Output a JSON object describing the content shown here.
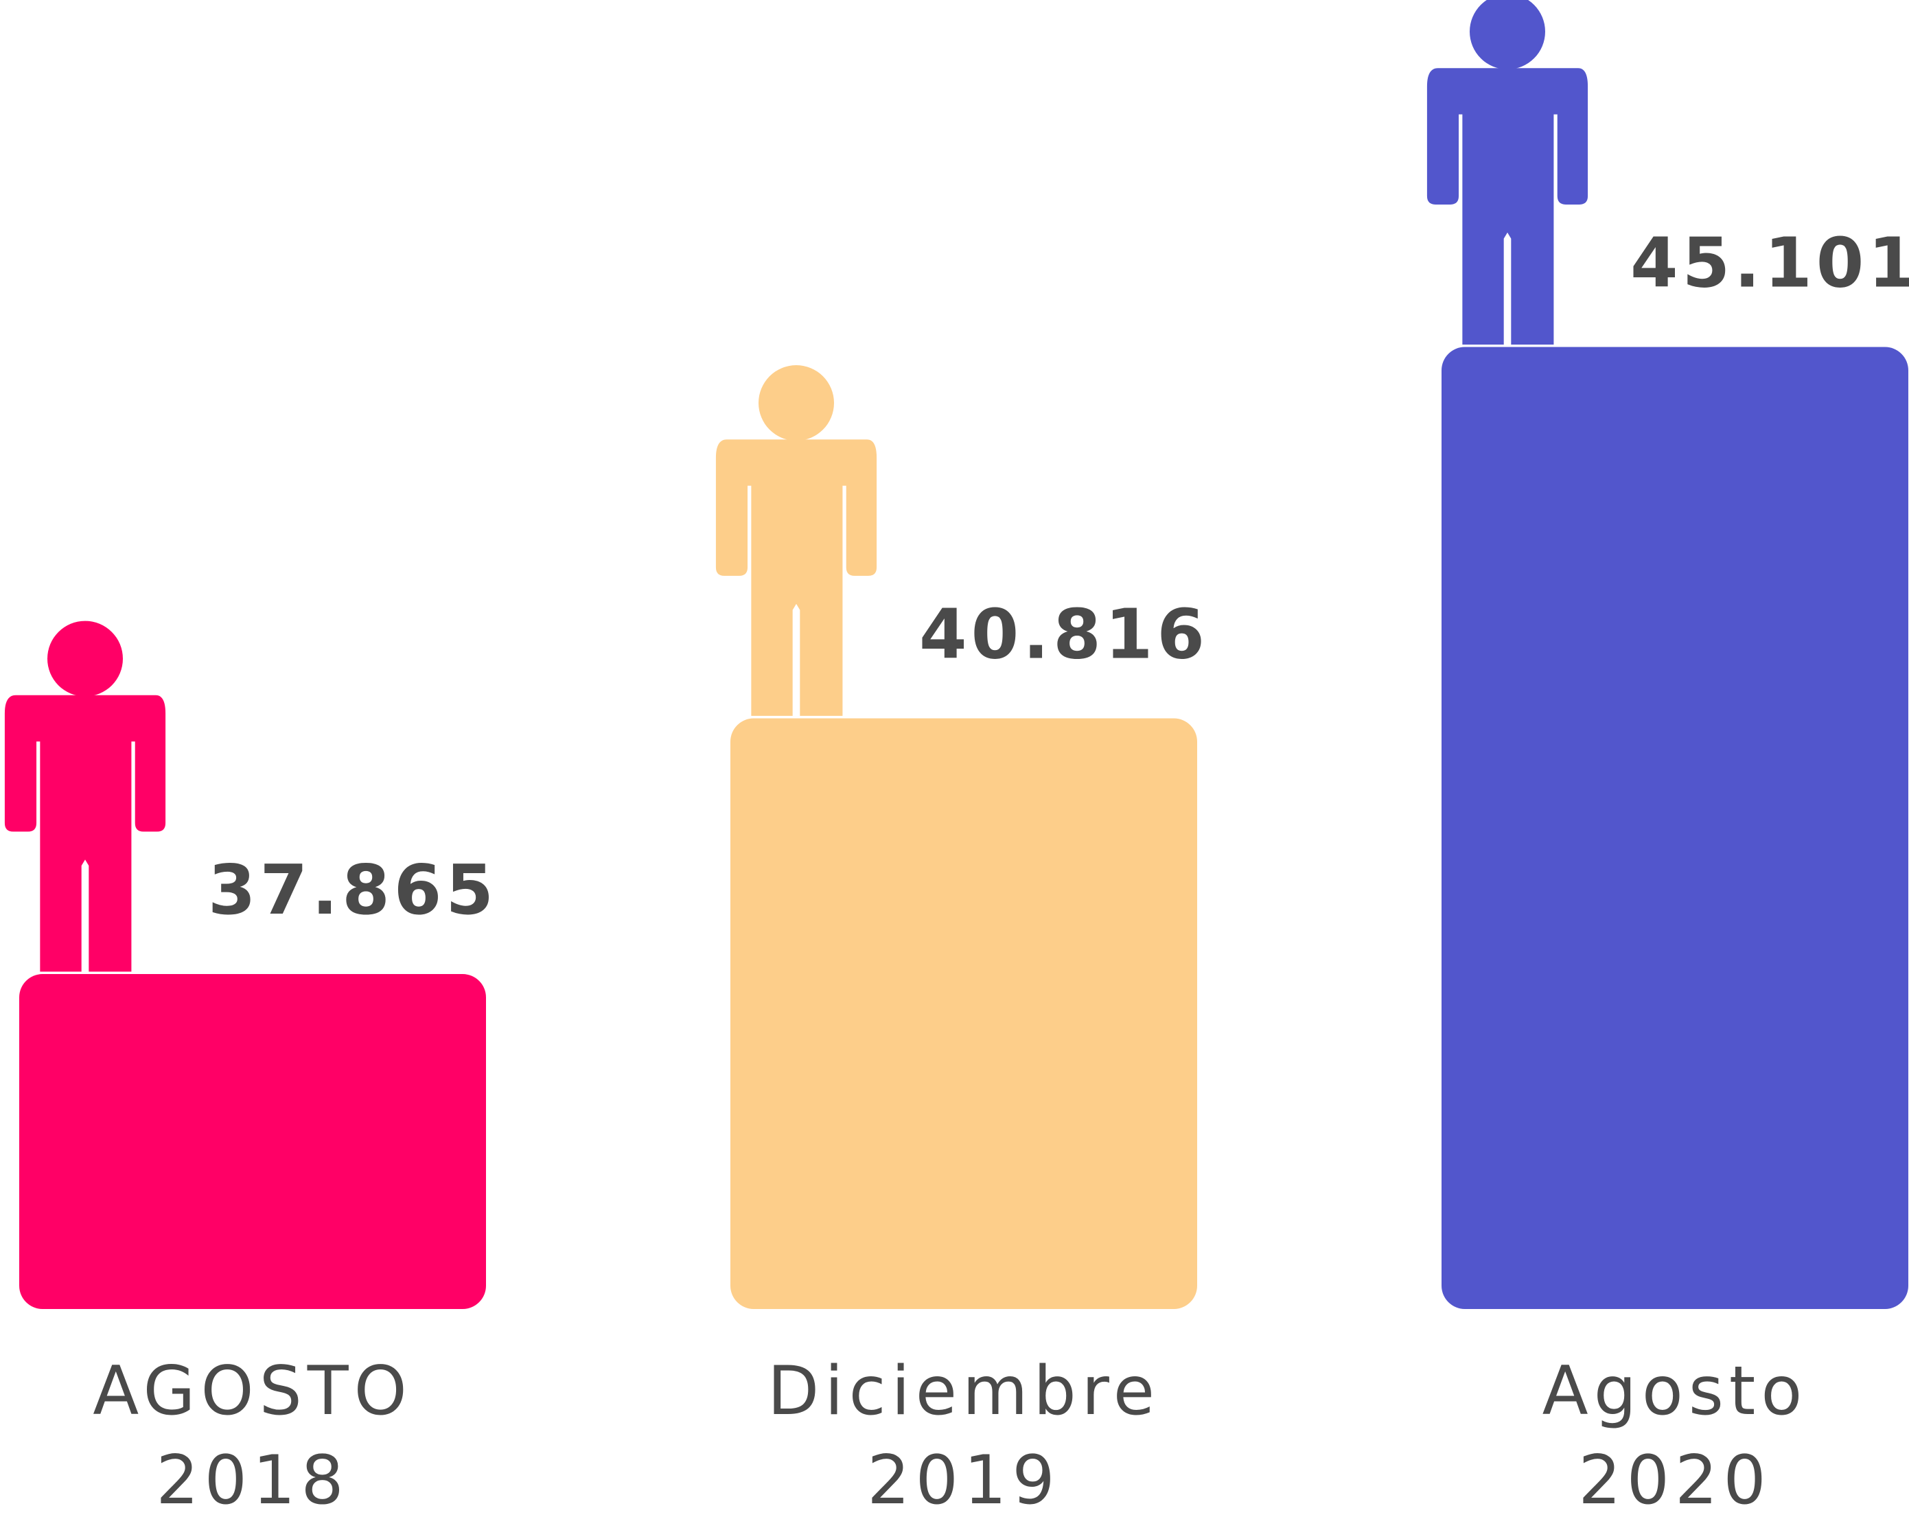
{
  "chart_data": {
    "type": "bar",
    "categories": [
      "AGOSTO\n2018",
      "Diciembre\n2019",
      "Agosto\n2020"
    ],
    "values": [
      37865,
      40816,
      45101
    ],
    "value_labels": [
      "37.865",
      "40.816",
      "45.101"
    ],
    "colors": [
      "#ff0066",
      "#fdce8a",
      "#5256cc"
    ],
    "ylim": [
      34000,
      46000
    ]
  }
}
